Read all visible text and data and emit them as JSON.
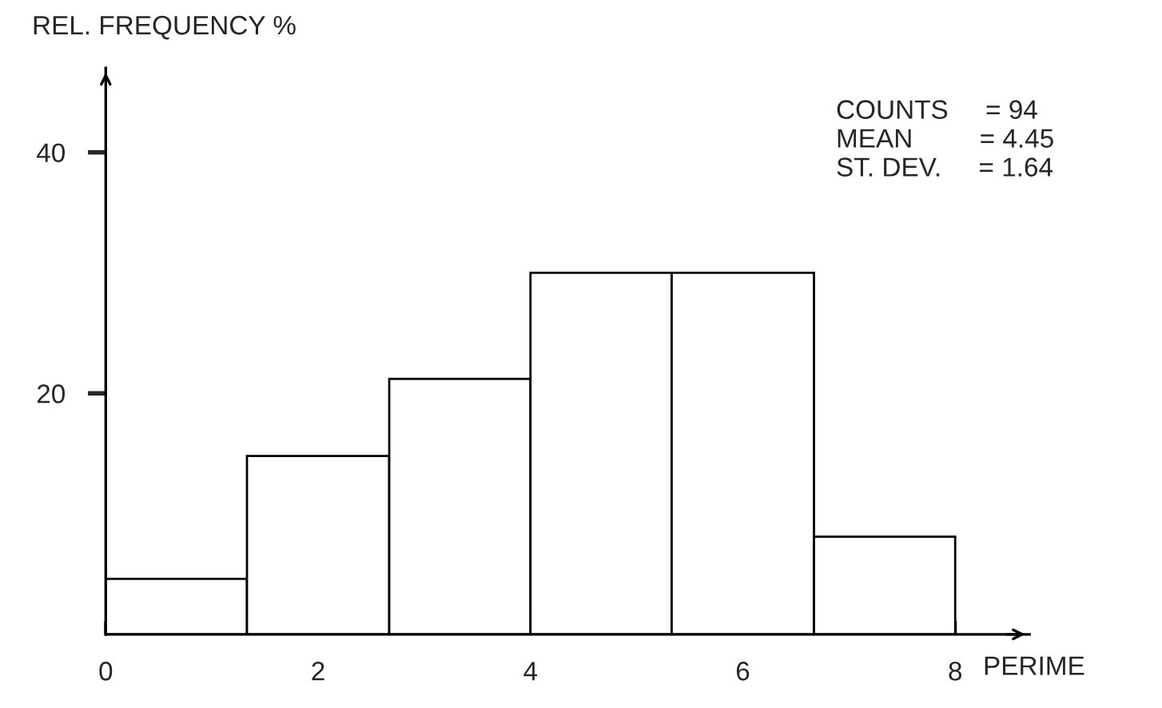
{
  "chart_data": {
    "type": "histogram",
    "xlabel": "PERIME",
    "ylabel": "REL. FREQUENCY %",
    "bins": [
      0,
      1.33,
      2.67,
      4,
      5.33,
      6.67,
      8
    ],
    "values": [
      4.6,
      14.8,
      21.2,
      30,
      30,
      8.1
    ],
    "color": "#ffffff",
    "xlim": [
      0,
      8.7
    ],
    "ylim": [
      0,
      47
    ],
    "xticks": [
      0,
      2,
      4,
      6,
      8
    ],
    "yticks": [
      20,
      40
    ],
    "grid": false,
    "annotations": [
      "COUNTS     = 94",
      "MEAN         = 4.45",
      "ST. DEV.     = 1.64"
    ]
  }
}
